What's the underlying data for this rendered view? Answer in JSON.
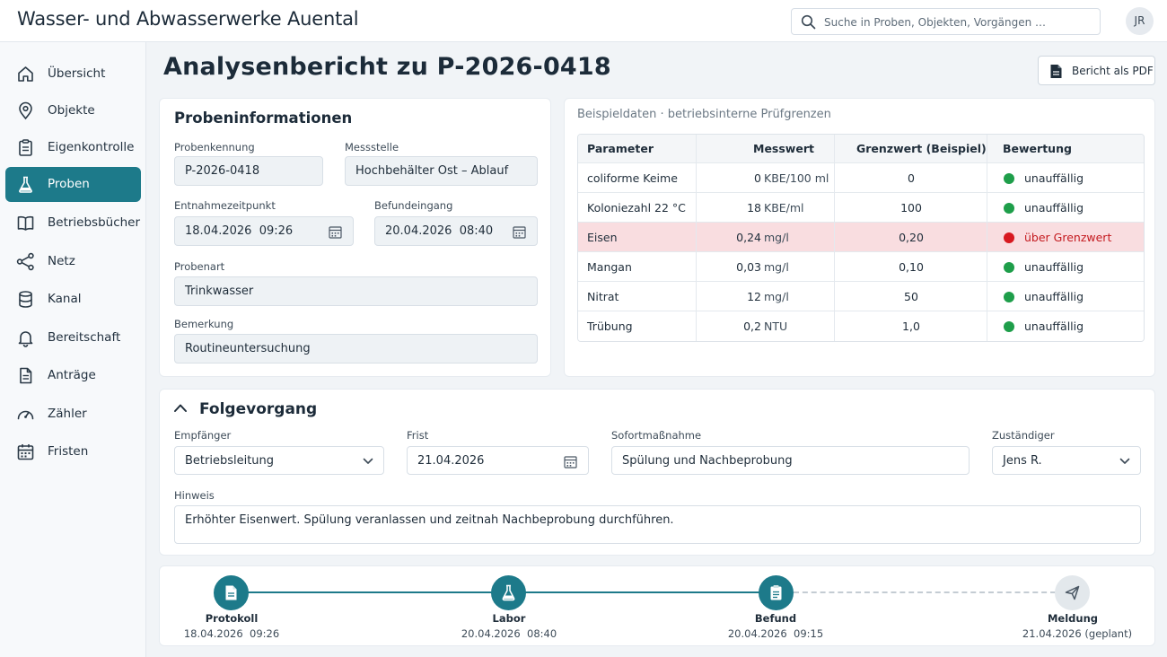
{
  "header": {
    "app_title": "Wasser- und Abwasserwerke Auental",
    "search_placeholder": "Suche in Proben, Objekten, Vorgängen …",
    "user_initials": "JR"
  },
  "sidebar": {
    "items": [
      {
        "label": "Übersicht",
        "icon": "home-icon"
      },
      {
        "label": "Objekte",
        "icon": "location-pin-icon"
      },
      {
        "label": "Eigenkontrolle",
        "icon": "clipboard-icon"
      },
      {
        "label": "Proben",
        "icon": "flask-icon",
        "active": true
      },
      {
        "label": "Betriebsbücher",
        "icon": "book-icon"
      },
      {
        "label": "Netz",
        "icon": "network-icon"
      },
      {
        "label": "Kanal",
        "icon": "database-icon"
      },
      {
        "label": "Bereitschaft",
        "icon": "bell-icon"
      },
      {
        "label": "Anträge",
        "icon": "document-icon"
      },
      {
        "label": "Zähler",
        "icon": "gauge-icon"
      },
      {
        "label": "Fristen",
        "icon": "calendar-icon"
      }
    ]
  },
  "page": {
    "title": "Analysenbericht zu P-2026-0418",
    "pdf_button": "Bericht als PDF"
  },
  "sample_info": {
    "title": "Probeninformationen",
    "fields": {
      "probenkennung": {
        "label": "Probenkennung",
        "value": "P-2026-0418"
      },
      "messstelle": {
        "label": "Messstelle",
        "value": "Hochbehälter Ost – Ablauf"
      },
      "entnahme": {
        "label": "Entnahmezeitpunkt",
        "value": "18.04.2026  09:26"
      },
      "befundeingang": {
        "label": "Befundeingang",
        "value": "20.04.2026  08:40"
      },
      "probenart": {
        "label": "Probenart",
        "value": "Trinkwasser"
      },
      "bemerkung": {
        "label": "Bemerkung",
        "value": "Routineuntersuchung"
      }
    }
  },
  "results": {
    "note": "Beispieldaten · betriebsinterne Prüfgrenzen",
    "headers": [
      "Parameter",
      "Messwert",
      "Grenzwert (Beispiel)",
      "Bewertung"
    ],
    "rows": [
      {
        "parameter": "coliforme Keime",
        "value": "0",
        "unit": "KBE/100 ml",
        "limit": "0",
        "status": "unauffällig",
        "alert": false
      },
      {
        "parameter": "Koloniezahl 22 °C",
        "value": "18",
        "unit": "KBE/ml",
        "limit": "100",
        "status": "unauffällig",
        "alert": false
      },
      {
        "parameter": "Eisen",
        "value": "0,24",
        "unit": "mg/l",
        "limit": "0,20",
        "status": "über Grenzwert",
        "alert": true
      },
      {
        "parameter": "Mangan",
        "value": "0,03",
        "unit": "mg/l",
        "limit": "0,10",
        "status": "unauffällig",
        "alert": false
      },
      {
        "parameter": "Nitrat",
        "value": "12",
        "unit": "mg/l",
        "limit": "50",
        "status": "unauffällig",
        "alert": false
      },
      {
        "parameter": "Trübung",
        "value": "0,2",
        "unit": "NTU",
        "limit": "1,0",
        "status": "unauffällig",
        "alert": false
      }
    ],
    "colors": {
      "ok": "#1e9e4a",
      "alert": "#d71920",
      "alert_row": "#f9dde0"
    }
  },
  "followup": {
    "title": "Folgevorgang",
    "empfaenger": {
      "label": "Empfänger",
      "value": "Betriebsleitung"
    },
    "frist": {
      "label": "Frist",
      "value": "21.04.2026"
    },
    "sofortmassnahme": {
      "label": "Sofortmaßnahme",
      "value": "Spülung und Nachbeprobung"
    },
    "zustaendiger": {
      "label": "Zuständiger",
      "value": "Jens R."
    },
    "hinweis": {
      "label": "Hinweis",
      "value": "Erhöhter Eisenwert. Spülung veranlassen und zeitnah Nachbeprobung durchführen."
    }
  },
  "timeline": {
    "steps": [
      {
        "name": "Protokoll",
        "date": "18.04.2026  09:26",
        "icon": "document-icon",
        "done": true
      },
      {
        "name": "Labor",
        "date": "20.04.2026  08:40",
        "icon": "flask-icon",
        "done": true
      },
      {
        "name": "Befund",
        "date": "20.04.2026  09:15",
        "icon": "clipboard-icon",
        "done": true
      },
      {
        "name": "Meldung",
        "date": "21.04.2026 (geplant)",
        "icon": "send-icon",
        "done": false
      }
    ]
  },
  "accent_color": "#1d7a8a"
}
